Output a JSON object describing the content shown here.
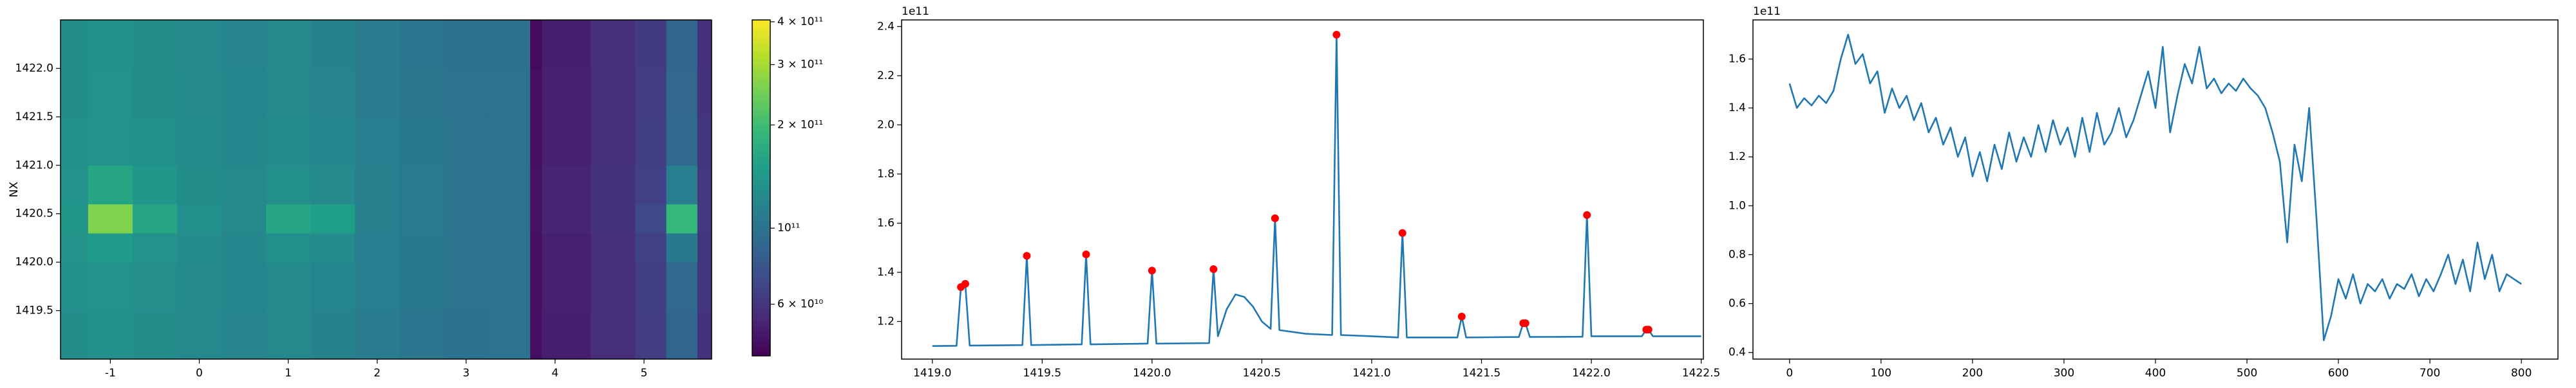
{
  "chart_data": [
    {
      "type": "heatmap",
      "ylabel": "NX",
      "colormap": "viridis",
      "xlim": [
        -1.56,
        5.76
      ],
      "ylim": [
        1419.0,
        1422.5
      ],
      "xticks": [
        -1,
        0,
        1,
        2,
        3,
        4,
        5
      ],
      "yticks": [
        1419.5,
        {
          "value": 1420,
          "label": "1420.0"
        },
        1420.5,
        {
          "value": 1421,
          "label": "1421.0"
        },
        1421.5,
        {
          "value": 1422,
          "label": "1422.0"
        }
      ],
      "xedges": [
        -1.56,
        -1.25,
        -0.75,
        -0.25,
        0.25,
        0.75,
        1.25,
        1.75,
        2.25,
        2.75,
        3.25,
        3.72,
        3.85,
        4.4,
        4.9,
        5.25,
        5.6,
        5.76
      ],
      "yedges": [
        1419.0,
        1419.5,
        1420.0,
        1420.3,
        1420.6,
        1421.0,
        1421.5,
        1422.0,
        1422.5
      ],
      "z": [
        [
          128000000000.0,
          132000000000.0,
          127000000000.0,
          122000000000.0,
          118000000000.0,
          122000000000.0,
          117000000000.0,
          108000000000.0,
          103000000000.0,
          98000000000.0,
          99000000000.0,
          46000000000.0,
          51000000000.0,
          57000000000.0,
          64000000000.0,
          88000000000.0,
          59000000000.0
        ],
        [
          130000000000.0,
          134000000000.0,
          129000000000.0,
          124000000000.0,
          120000000000.0,
          124000000000.0,
          119000000000.0,
          110000000000.0,
          105000000000.0,
          100000000000.0,
          100000000000.0,
          46000000000.0,
          52000000000.0,
          58000000000.0,
          65000000000.0,
          90000000000.0,
          60000000000.0
        ],
        [
          134000000000.0,
          145000000000.0,
          135000000000.0,
          126000000000.0,
          121000000000.0,
          130000000000.0,
          125000000000.0,
          111000000000.0,
          105000000000.0,
          100000000000.0,
          100000000000.0,
          46000000000.0,
          52000000000.0,
          58000000000.0,
          66000000000.0,
          105000000000.0,
          60000000000.0
        ],
        [
          140000000000.0,
          260000000000.0,
          160000000000.0,
          130000000000.0,
          122000000000.0,
          160000000000.0,
          150000000000.0,
          112000000000.0,
          106000000000.0,
          100000000000.0,
          101000000000.0,
          47000000000.0,
          53000000000.0,
          59000000000.0,
          70000000000.0,
          190000000000.0,
          62000000000.0
        ],
        [
          135000000000.0,
          160000000000.0,
          138000000000.0,
          127000000000.0,
          122000000000.0,
          130000000000.0,
          124000000000.0,
          112000000000.0,
          106000000000.0,
          101000000000.0,
          101000000000.0,
          47000000000.0,
          53000000000.0,
          59000000000.0,
          66000000000.0,
          110000000000.0,
          61000000000.0
        ],
        [
          130000000000.0,
          135000000000.0,
          130000000000.0,
          125000000000.0,
          120000000000.0,
          125000000000.0,
          120000000000.0,
          110000000000.0,
          105000000000.0,
          100000000000.0,
          100000000000.0,
          46000000000.0,
          52000000000.0,
          58000000000.0,
          65000000000.0,
          90000000000.0,
          60000000000.0
        ],
        [
          128000000000.0,
          133000000000.0,
          128000000000.0,
          123000000000.0,
          119000000000.0,
          123000000000.0,
          118000000000.0,
          109000000000.0,
          104000000000.0,
          99000000000.0,
          99000000000.0,
          46000000000.0,
          52000000000.0,
          57000000000.0,
          64000000000.0,
          89000000000.0,
          59000000000.0
        ],
        [
          127000000000.0,
          132000000000.0,
          127000000000.0,
          122000000000.0,
          118000000000.0,
          122000000000.0,
          117000000000.0,
          108000000000.0,
          103000000000.0,
          98000000000.0,
          98000000000.0,
          45000000000.0,
          51000000000.0,
          57000000000.0,
          63000000000.0,
          88000000000.0,
          58000000000.0
        ]
      ],
      "colorbar": {
        "lim": [
          42400000000.0,
          405000000000.0
        ],
        "log_scale": true,
        "ticks": [
          {
            "value": 400000000000.0,
            "label": "4 × 10¹¹"
          },
          {
            "value": 300000000000.0,
            "label": "3 × 10¹¹"
          },
          {
            "value": 200000000000.0,
            "label": "2 × 10¹¹"
          },
          {
            "value": 100000000000.0,
            "label": "10¹¹"
          },
          {
            "value": 60000000000.0,
            "label": "6 × 10¹⁰"
          }
        ]
      }
    },
    {
      "type": "line",
      "offset_label": "1e11",
      "xlim": [
        1418.86,
        1422.51
      ],
      "ylim": [
        104700000000.0,
        242700000000.0
      ],
      "xticks": [
        {
          "value": 1419,
          "label": "1419.0"
        },
        1419.5,
        {
          "value": 1420,
          "label": "1420.0"
        },
        1420.5,
        {
          "value": 1421,
          "label": "1421.0"
        },
        1421.5,
        {
          "value": 1422,
          "label": "1422.0"
        },
        1422.5
      ],
      "yticks": [
        {
          "value": 120000000000.0,
          "label": "1.2"
        },
        {
          "value": 140000000000.0,
          "label": "1.4"
        },
        {
          "value": 160000000000.0,
          "label": "1.6"
        },
        {
          "value": 180000000000.0,
          "label": "1.8"
        },
        {
          "value": 200000000000.0,
          "label": "2.0"
        },
        {
          "value": 220000000000.0,
          "label": "2.2"
        },
        {
          "value": 240000000000.0,
          "label": "2.4"
        }
      ],
      "series": [
        {
          "color": "#1f77b4",
          "style": "line",
          "x": [
            1419.0,
            1419.11,
            1419.13,
            1419.15,
            1419.17,
            1419.41,
            1419.43,
            1419.45,
            1419.68,
            1419.7,
            1419.72,
            1419.98,
            1420.0,
            1420.02,
            1420.26,
            1420.28,
            1420.3,
            1420.34,
            1420.38,
            1420.42,
            1420.46,
            1420.5,
            1420.54,
            1420.56,
            1420.58,
            1420.7,
            1420.82,
            1420.84,
            1420.86,
            1421.0,
            1421.12,
            1421.14,
            1421.16,
            1421.39,
            1421.41,
            1421.43,
            1421.67,
            1421.69,
            1421.7,
            1421.72,
            1421.96,
            1421.98,
            1422.0,
            1422.23,
            1422.25,
            1422.26,
            1422.28,
            1422.5
          ],
          "values": [
            110000000000.0,
            110100000000.0,
            134000000000.0,
            135300000000.0,
            110200000000.0,
            110400000000.0,
            146700000000.0,
            110400000000.0,
            110700000000.0,
            147300000000.0,
            110700000000.0,
            111000000000.0,
            140700000000.0,
            111000000000.0,
            111200000000.0,
            141300000000.0,
            114000000000.0,
            125000000000.0,
            131000000000.0,
            130000000000.0,
            126000000000.0,
            120000000000.0,
            117000000000.0,
            162000000000.0,
            116500000000.0,
            115000000000.0,
            114500000000.0,
            236700000000.0,
            114500000000.0,
            114000000000.0,
            113500000000.0,
            156000000000.0,
            113500000000.0,
            113500000000.0,
            122000000000.0,
            113500000000.0,
            113700000000.0,
            119300000000.0,
            119300000000.0,
            113700000000.0,
            113800000000.0,
            163300000000.0,
            114000000000.0,
            114000000000.0,
            116700000000.0,
            116700000000.0,
            114000000000.0,
            114000000000.0
          ]
        },
        {
          "color": "red",
          "style": "markers",
          "x": [
            1419.13,
            1419.15,
            1419.43,
            1419.7,
            1420.0,
            1420.28,
            1420.56,
            1420.84,
            1421.14,
            1421.41,
            1421.69,
            1421.7,
            1421.98,
            1422.25,
            1422.26
          ],
          "values": [
            134000000000.0,
            135300000000.0,
            146700000000.0,
            147300000000.0,
            140700000000.0,
            141300000000.0,
            162000000000.0,
            236700000000.0,
            156000000000.0,
            122000000000.0,
            119300000000.0,
            119300000000.0,
            163300000000.0,
            116700000000.0,
            116700000000.0
          ]
        }
      ]
    },
    {
      "type": "line",
      "offset_label": "1e11",
      "xlim": [
        -40,
        840
      ],
      "ylim": [
        37300000000.0,
        176000000000.0
      ],
      "xticks": [
        0,
        100,
        200,
        300,
        400,
        500,
        600,
        700,
        800
      ],
      "yticks": [
        {
          "value": 40000000000.0,
          "label": "0.4"
        },
        {
          "value": 60000000000.0,
          "label": "0.6"
        },
        {
          "value": 80000000000.0,
          "label": "0.8"
        },
        {
          "value": 100000000000.0,
          "label": "1.0"
        },
        {
          "value": 120000000000.0,
          "label": "1.2"
        },
        {
          "value": 140000000000.0,
          "label": "1.4"
        },
        {
          "value": 160000000000.0,
          "label": "1.6"
        }
      ],
      "series": [
        {
          "color": "#1f77b4",
          "style": "line",
          "x": [
            0,
            8,
            16,
            24,
            32,
            40,
            48,
            56,
            64,
            72,
            80,
            88,
            96,
            104,
            112,
            120,
            128,
            136,
            144,
            152,
            160,
            168,
            176,
            184,
            192,
            200,
            208,
            216,
            224,
            232,
            240,
            248,
            256,
            264,
            272,
            280,
            288,
            296,
            304,
            312,
            320,
            328,
            336,
            344,
            352,
            360,
            368,
            376,
            384,
            392,
            400,
            408,
            416,
            424,
            432,
            440,
            448,
            456,
            464,
            472,
            480,
            488,
            496,
            504,
            512,
            520,
            528,
            536,
            544,
            552,
            560,
            568,
            576,
            584,
            592,
            600,
            608,
            616,
            624,
            632,
            640,
            648,
            656,
            664,
            672,
            680,
            688,
            696,
            704,
            712,
            720,
            728,
            736,
            744,
            752,
            760,
            768,
            776,
            784,
            792,
            800
          ],
          "values": [
            150000000000.0,
            140000000000.0,
            144000000000.0,
            141000000000.0,
            145000000000.0,
            142000000000.0,
            147000000000.0,
            160000000000.0,
            170000000000.0,
            158000000000.0,
            162000000000.0,
            150000000000.0,
            155000000000.0,
            138000000000.0,
            148000000000.0,
            140000000000.0,
            145000000000.0,
            135000000000.0,
            142000000000.0,
            130000000000.0,
            136000000000.0,
            125000000000.0,
            132000000000.0,
            120000000000.0,
            128000000000.0,
            112000000000.0,
            122000000000.0,
            110000000000.0,
            125000000000.0,
            115000000000.0,
            130000000000.0,
            118000000000.0,
            128000000000.0,
            120000000000.0,
            133000000000.0,
            122000000000.0,
            135000000000.0,
            125000000000.0,
            132000000000.0,
            120000000000.0,
            136000000000.0,
            122000000000.0,
            138000000000.0,
            125000000000.0,
            130000000000.0,
            140000000000.0,
            128000000000.0,
            135000000000.0,
            145000000000.0,
            155000000000.0,
            140000000000.0,
            165000000000.0,
            130000000000.0,
            145000000000.0,
            158000000000.0,
            150000000000.0,
            165000000000.0,
            148000000000.0,
            152000000000.0,
            146000000000.0,
            150000000000.0,
            147000000000.0,
            152000000000.0,
            148000000000.0,
            145000000000.0,
            140000000000.0,
            130000000000.0,
            118000000000.0,
            85000000000.0,
            125000000000.0,
            110000000000.0,
            140000000000.0,
            95000000000.0,
            45000000000.0,
            55000000000.0,
            70000000000.0,
            62000000000.0,
            72000000000.0,
            60000000000.0,
            68000000000.0,
            65000000000.0,
            70000000000.0,
            62000000000.0,
            68000000000.0,
            66000000000.0,
            72000000000.0,
            63000000000.0,
            70000000000.0,
            65000000000.0,
            72000000000.0,
            80000000000.0,
            68000000000.0,
            78000000000.0,
            65000000000.0,
            85000000000.0,
            70000000000.0,
            80000000000.0,
            65000000000.0,
            72000000000.0,
            70000000000.0,
            68000000000.0
          ]
        }
      ]
    }
  ]
}
